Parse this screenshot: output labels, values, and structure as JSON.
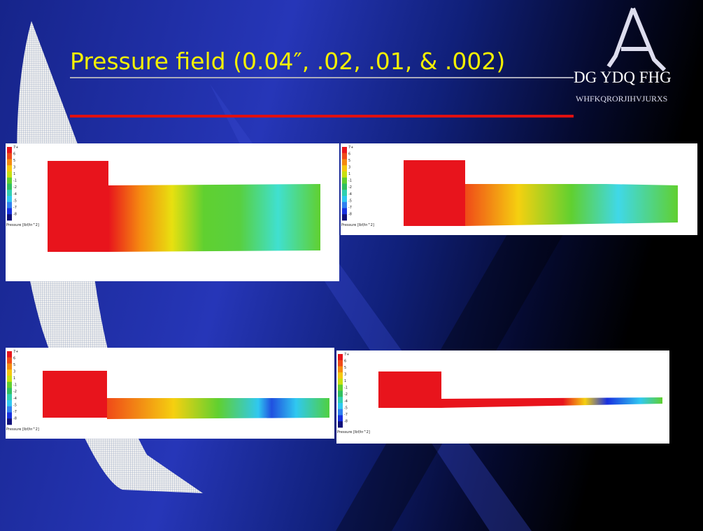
{
  "slide": {
    "title": "Pressure field (0.04″, .02, .01, & .002)",
    "logo": {
      "name": "DG YDQ FHG",
      "tagline": "WHFKQRORJIHVJURXS"
    },
    "legend": {
      "labels": [
        "7+",
        "6",
        "5",
        "3",
        "1",
        "-1",
        "-2",
        "-4",
        "-5",
        "-7",
        "-8"
      ],
      "title": "Pressure [lbf/in^2]"
    }
  }
}
